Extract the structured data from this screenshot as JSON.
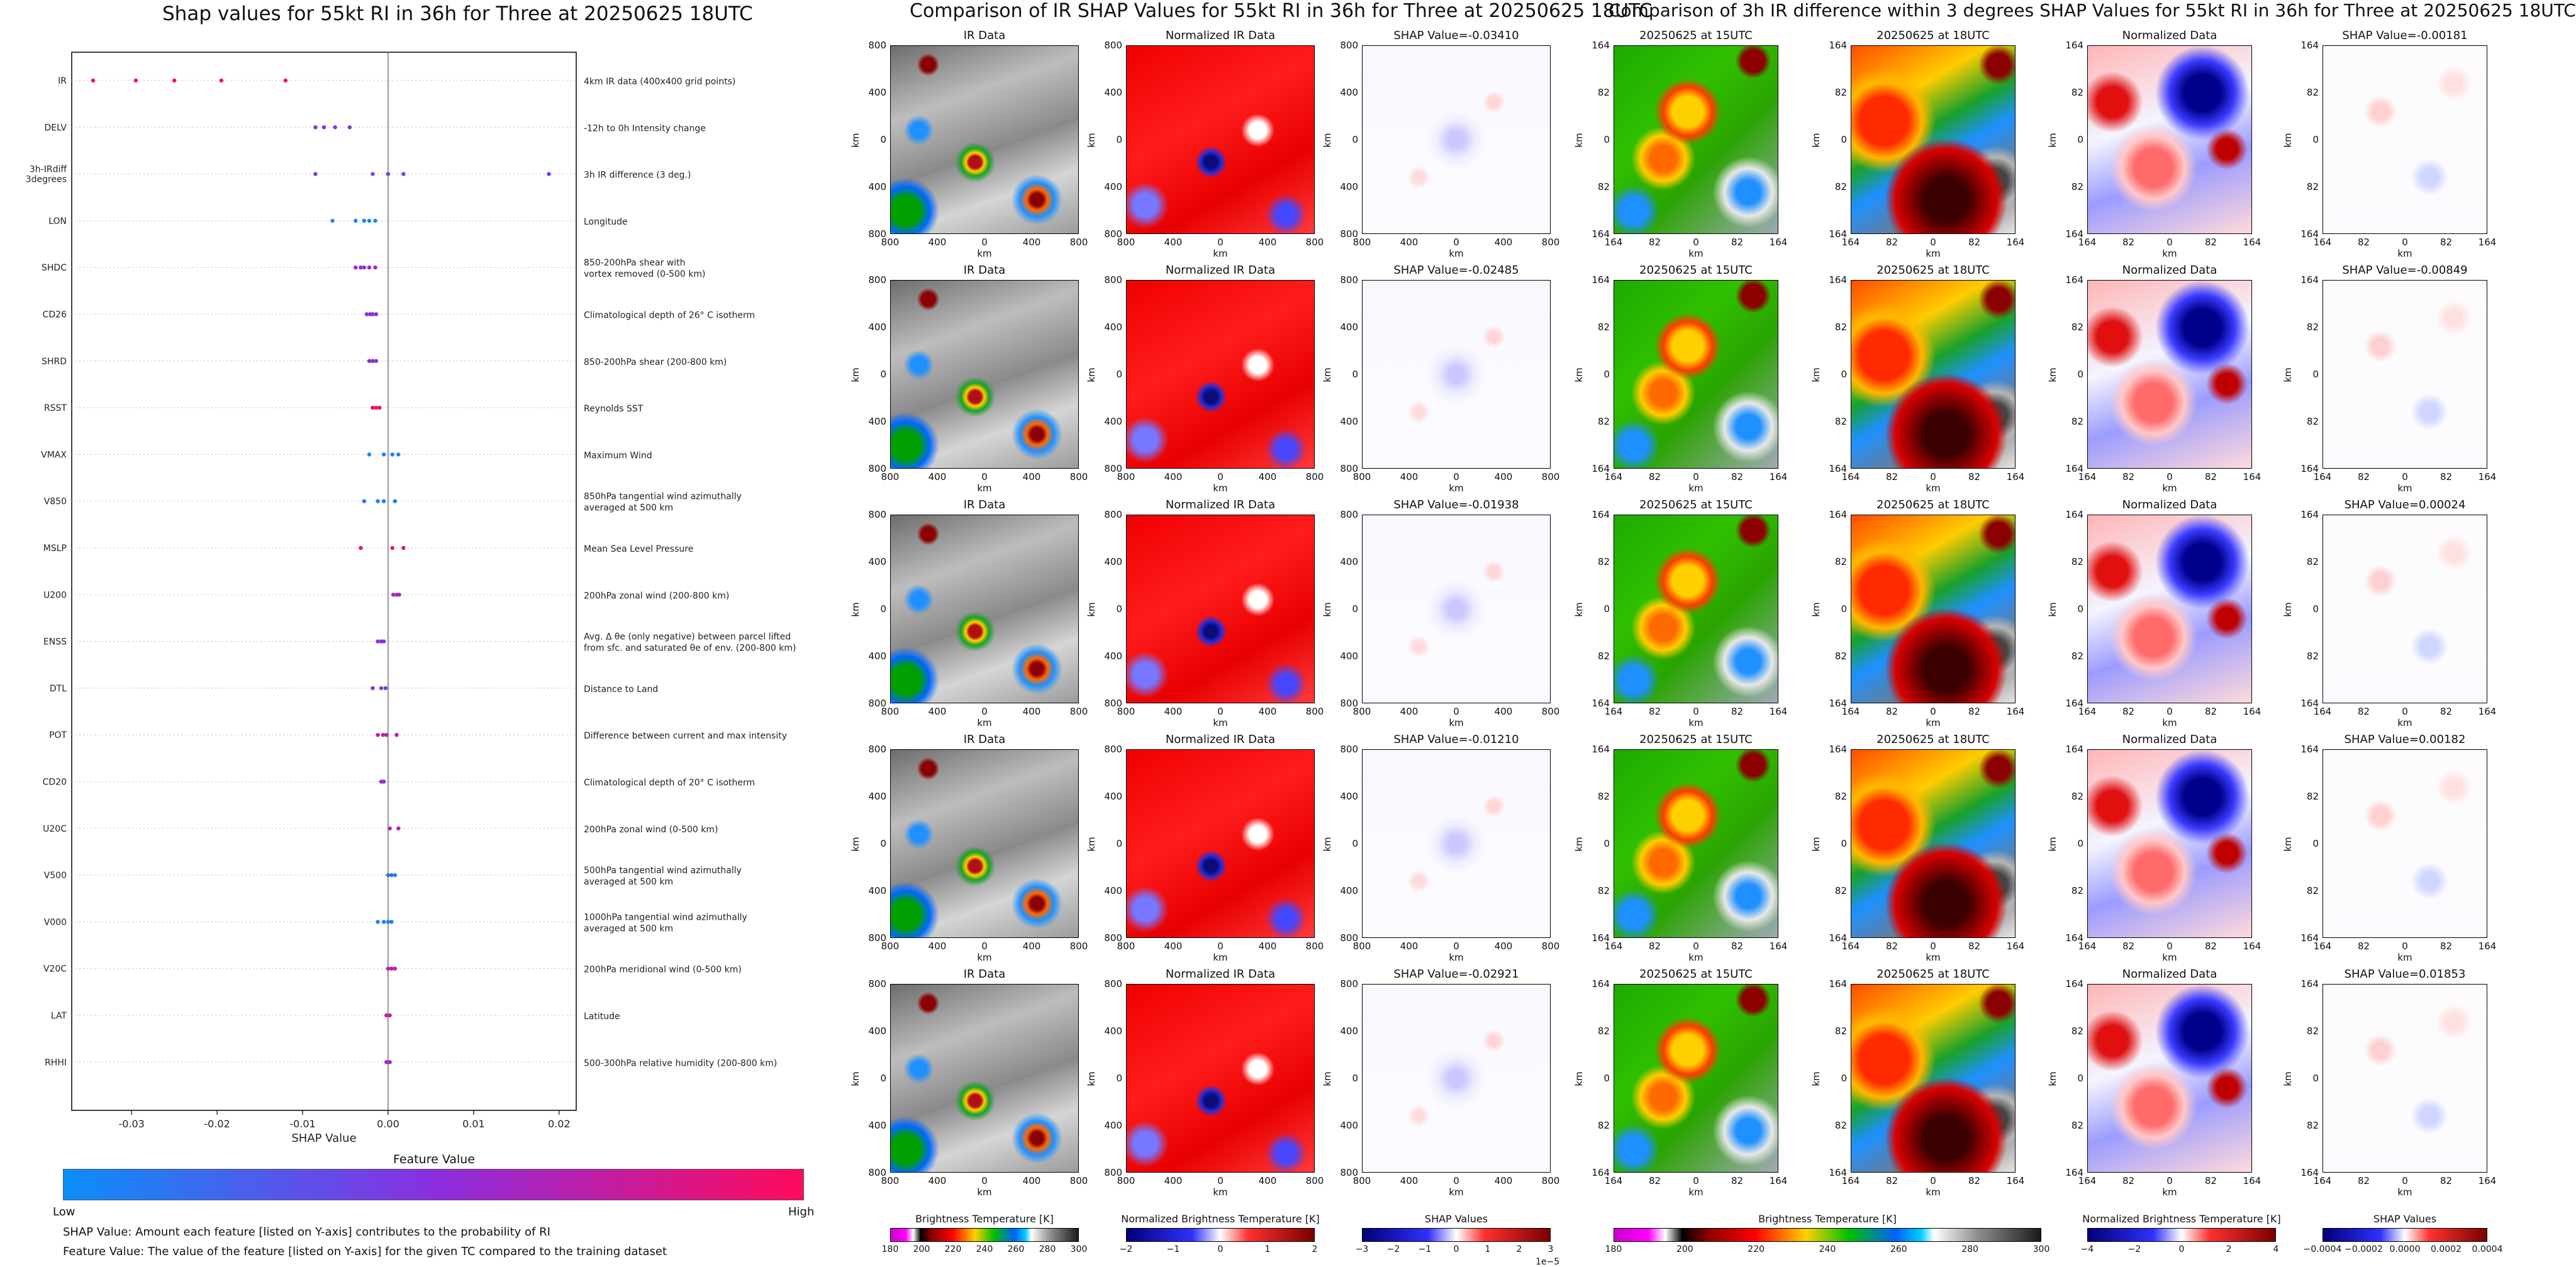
{
  "left_title": "Shap values for 55kt RI in 36h for Three at 20250625 18UTC",
  "mid_title": "Comparison of IR SHAP Values for 55kt RI in 36h for Three at 20250625 18UTC",
  "right_title": "Comparison of 3h IR difference within 3 degrees SHAP Values for 55kt RI in 36h for Three at 20250625 18UTC",
  "colorbar": {
    "title": "Feature Value",
    "low": "Low",
    "high": "High",
    "colors": [
      "#0a8ff8",
      "#8a2fe0",
      "#ff0a5c"
    ]
  },
  "footnotes": [
    "SHAP Value: Amount each feature [listed on Y-axis] contributes to the probability of RI",
    "Feature Value: The value of the feature [listed on Y-axis] for the given TC compared to the training dataset"
  ],
  "chart_data": [
    {
      "type": "scatter",
      "title": "Shap values for 55kt RI in 36h for Three at 20250625 18UTC",
      "xlabel": "SHAP Value",
      "xlim": [
        -0.037,
        0.022
      ],
      "xticks": [
        "-0.03",
        "-0.02",
        "-0.01",
        "0.00",
        "0.01",
        "0.02"
      ],
      "xtick_values": [
        -0.03,
        -0.02,
        -0.01,
        0.0,
        0.01,
        0.02
      ],
      "features": [
        {
          "name": "IR",
          "desc": [
            "4km IR data (400x400 grid points)"
          ],
          "points": [
            [
              -0.0345,
              1.0
            ],
            [
              -0.0295,
              1.0
            ],
            [
              -0.025,
              1.0
            ],
            [
              -0.0195,
              1.0
            ],
            [
              -0.012,
              1.0
            ]
          ]
        },
        {
          "name": "DELV",
          "desc": [
            "-12h to 0h Intensity change"
          ],
          "points": [
            [
              -0.0085,
              0.5
            ],
            [
              -0.0075,
              0.5
            ],
            [
              -0.0062,
              0.5
            ],
            [
              -0.0045,
              0.5
            ]
          ]
        },
        {
          "name": "3h-IRdiff\n3degrees",
          "desc": [
            "3h IR difference (3 deg.)"
          ],
          "points": [
            [
              -0.0085,
              0.45
            ],
            [
              -0.0018,
              0.3
            ],
            [
              0.0,
              0.4
            ],
            [
              0.0018,
              0.35
            ],
            [
              0.0188,
              0.45
            ]
          ]
        },
        {
          "name": "LON",
          "desc": [
            "Longitude"
          ],
          "points": [
            [
              -0.0065,
              0.05
            ],
            [
              -0.0038,
              0.05
            ],
            [
              -0.0028,
              0.05
            ],
            [
              -0.0022,
              0.05
            ],
            [
              -0.0015,
              0.05
            ]
          ]
        },
        {
          "name": "SHDC",
          "desc": [
            "850-200hPa shear with",
            "vortex removed (0-500 km)"
          ],
          "points": [
            [
              -0.0038,
              0.55
            ],
            [
              -0.0032,
              0.55
            ],
            [
              -0.0028,
              0.55
            ],
            [
              -0.0022,
              0.55
            ],
            [
              -0.0015,
              0.55
            ]
          ]
        },
        {
          "name": "CD26",
          "desc": [
            "Climatological depth of 26° C isotherm"
          ],
          "points": [
            [
              -0.0025,
              0.5
            ],
            [
              -0.0021,
              0.5
            ],
            [
              -0.0018,
              0.5
            ],
            [
              -0.0014,
              0.5
            ]
          ]
        },
        {
          "name": "SHRD",
          "desc": [
            "850-200hPa shear (200-800 km)"
          ],
          "points": [
            [
              -0.0022,
              0.5
            ],
            [
              -0.0018,
              0.5
            ],
            [
              -0.0014,
              0.5
            ]
          ]
        },
        {
          "name": "RSST",
          "desc": [
            "Reynolds SST"
          ],
          "points": [
            [
              -0.0018,
              0.95
            ],
            [
              -0.0014,
              0.95
            ],
            [
              -0.001,
              0.95
            ]
          ]
        },
        {
          "name": "VMAX",
          "desc": [
            "Maximum Wind"
          ],
          "points": [
            [
              -0.0022,
              0.05
            ],
            [
              -0.0005,
              0.05
            ],
            [
              0.0005,
              0.05
            ],
            [
              0.0012,
              0.05
            ]
          ]
        },
        {
          "name": "V850",
          "desc": [
            "850hPa tangential wind azimuthally",
            "averaged at 500 km"
          ],
          "points": [
            [
              -0.0028,
              0.1
            ],
            [
              -0.0012,
              0.1
            ],
            [
              -0.0005,
              0.1
            ],
            [
              0.0008,
              0.1
            ]
          ]
        },
        {
          "name": "MSLP",
          "desc": [
            "Mean Sea Level Pressure"
          ],
          "points": [
            [
              -0.0032,
              0.95
            ],
            [
              0.0005,
              0.95
            ],
            [
              0.0018,
              0.95
            ]
          ]
        },
        {
          "name": "U200",
          "desc": [
            "200hPa zonal wind (200-800 km)"
          ],
          "points": [
            [
              0.0006,
              0.6
            ],
            [
              0.001,
              0.6
            ],
            [
              0.0013,
              0.6
            ]
          ]
        },
        {
          "name": "ENSS",
          "desc": [
            "Avg. Δ θe (only negative) between parcel lifted",
            "from sfc. and saturated θe of env. (200-800 km)"
          ],
          "points": [
            [
              -0.0012,
              0.5
            ],
            [
              -0.0008,
              0.5
            ],
            [
              -0.0005,
              0.5
            ]
          ]
        },
        {
          "name": "DTL",
          "desc": [
            "Distance to Land"
          ],
          "points": [
            [
              -0.0018,
              0.45
            ],
            [
              -0.0008,
              0.45
            ],
            [
              -0.0003,
              0.45
            ]
          ]
        },
        {
          "name": "POT",
          "desc": [
            "Difference between current and max intensity"
          ],
          "points": [
            [
              -0.0012,
              0.7
            ],
            [
              -0.0006,
              0.7
            ],
            [
              -0.0002,
              0.7
            ],
            [
              0.001,
              0.7
            ]
          ]
        },
        {
          "name": "CD20",
          "desc": [
            "Climatological depth of 20° C isotherm"
          ],
          "points": [
            [
              -0.0008,
              0.55
            ],
            [
              -0.0005,
              0.55
            ]
          ]
        },
        {
          "name": "U20C",
          "desc": [
            "200hPa zonal wind (0-500 km)"
          ],
          "points": [
            [
              0.0002,
              0.65
            ],
            [
              0.0012,
              0.65
            ]
          ]
        },
        {
          "name": "V500",
          "desc": [
            "500hPa tangential wind azimuthally",
            "averaged at 500 km"
          ],
          "points": [
            [
              0.0,
              0.1
            ],
            [
              0.0004,
              0.1
            ],
            [
              0.0008,
              0.1
            ]
          ]
        },
        {
          "name": "V000",
          "desc": [
            "1000hPa tangential wind azimuthally",
            "averaged at 500 km"
          ],
          "points": [
            [
              -0.0012,
              0.1
            ],
            [
              -0.0005,
              0.1
            ],
            [
              0.0,
              0.1
            ],
            [
              0.0004,
              0.1
            ]
          ]
        },
        {
          "name": "V20C",
          "desc": [
            "200hPa meridional wind (0-500 km)"
          ],
          "points": [
            [
              0.0,
              0.7
            ],
            [
              0.0004,
              0.7
            ],
            [
              0.0008,
              0.7
            ]
          ]
        },
        {
          "name": "LAT",
          "desc": [
            "Latitude"
          ],
          "points": [
            [
              -0.0002,
              0.75
            ],
            [
              0.0002,
              0.75
            ]
          ]
        },
        {
          "name": "RHHI",
          "desc": [
            "500-300hPa relative humidity (200-800 km)"
          ],
          "points": [
            [
              -0.0002,
              0.6
            ],
            [
              0.0002,
              0.6
            ]
          ]
        }
      ]
    },
    {
      "type": "heatmap",
      "title": "Comparison of IR SHAP Values for 55kt RI in 36h for Three at 20250625 18UTC",
      "axis_label": "km",
      "xticks": [
        "800",
        "400",
        "0",
        "400",
        "800"
      ],
      "yticks": [
        "800",
        "400",
        "0",
        "400",
        "800"
      ],
      "rows": [
        {
          "titles": [
            "IR Data",
            "Normalized IR Data",
            "SHAP Value=-0.03410"
          ],
          "shap": -0.0341
        },
        {
          "titles": [
            "IR Data",
            "Normalized IR Data",
            "SHAP Value=-0.02485"
          ],
          "shap": -0.02485
        },
        {
          "titles": [
            "IR Data",
            "Normalized IR Data",
            "SHAP Value=-0.01938"
          ],
          "shap": -0.01938
        },
        {
          "titles": [
            "IR Data",
            "Normalized IR Data",
            "SHAP Value=-0.01210"
          ],
          "shap": -0.0121
        },
        {
          "titles": [
            "IR Data",
            "Normalized IR Data",
            "SHAP Value=-0.02921"
          ],
          "shap": -0.02921
        }
      ],
      "colorbars": [
        {
          "title": "Brightness Temperature [K]",
          "ticks": [
            "180",
            "200",
            "220",
            "240",
            "260",
            "280",
            "300"
          ]
        },
        {
          "title": "Normalized Brightness Temperature [K]",
          "ticks": [
            "−2",
            "−1",
            "0",
            "1",
            "2"
          ]
        },
        {
          "title": "SHAP Values",
          "ticks": [
            "−3",
            "−2",
            "−1",
            "0",
            "1",
            "2",
            "3"
          ],
          "offset": "1e−5"
        }
      ]
    },
    {
      "type": "heatmap",
      "title": "Comparison of 3h IR difference within 3 degrees SHAP Values for 55kt RI in 36h for Three at 20250625 18UTC",
      "axis_label": "km",
      "xticks": [
        "164",
        "82",
        "0",
        "82",
        "164"
      ],
      "yticks": [
        "164",
        "82",
        "0",
        "82",
        "164"
      ],
      "rows": [
        {
          "titles": [
            "20250625 at 15UTC",
            "20250625 at 18UTC",
            "Normalized Data",
            "SHAP Value=-0.00181"
          ],
          "shap": -0.00181
        },
        {
          "titles": [
            "20250625 at 15UTC",
            "20250625 at 18UTC",
            "Normalized Data",
            "SHAP Value=-0.00849"
          ],
          "shap": -0.00849
        },
        {
          "titles": [
            "20250625 at 15UTC",
            "20250625 at 18UTC",
            "Normalized Data",
            "SHAP Value=0.00024"
          ],
          "shap": 0.00024
        },
        {
          "titles": [
            "20250625 at 15UTC",
            "20250625 at 18UTC",
            "Normalized Data",
            "SHAP Value=0.00182"
          ],
          "shap": 0.00182
        },
        {
          "titles": [
            "20250625 at 15UTC",
            "20250625 at 18UTC",
            "Normalized Data",
            "SHAP Value=0.01853"
          ],
          "shap": 0.01853
        }
      ],
      "colorbars": [
        {
          "title": "Brightness Temperature [K]",
          "ticks": [
            "180",
            "200",
            "220",
            "240",
            "260",
            "280",
            "300"
          ]
        },
        {
          "title": "Normalized Brightness Temperature [K]",
          "ticks": [
            "−4",
            "−2",
            "0",
            "2",
            "4"
          ]
        },
        {
          "title": "SHAP Values",
          "ticks": [
            "−0.0004",
            "−0.0002",
            "0.0000",
            "0.0002",
            "0.0004"
          ]
        }
      ]
    }
  ]
}
